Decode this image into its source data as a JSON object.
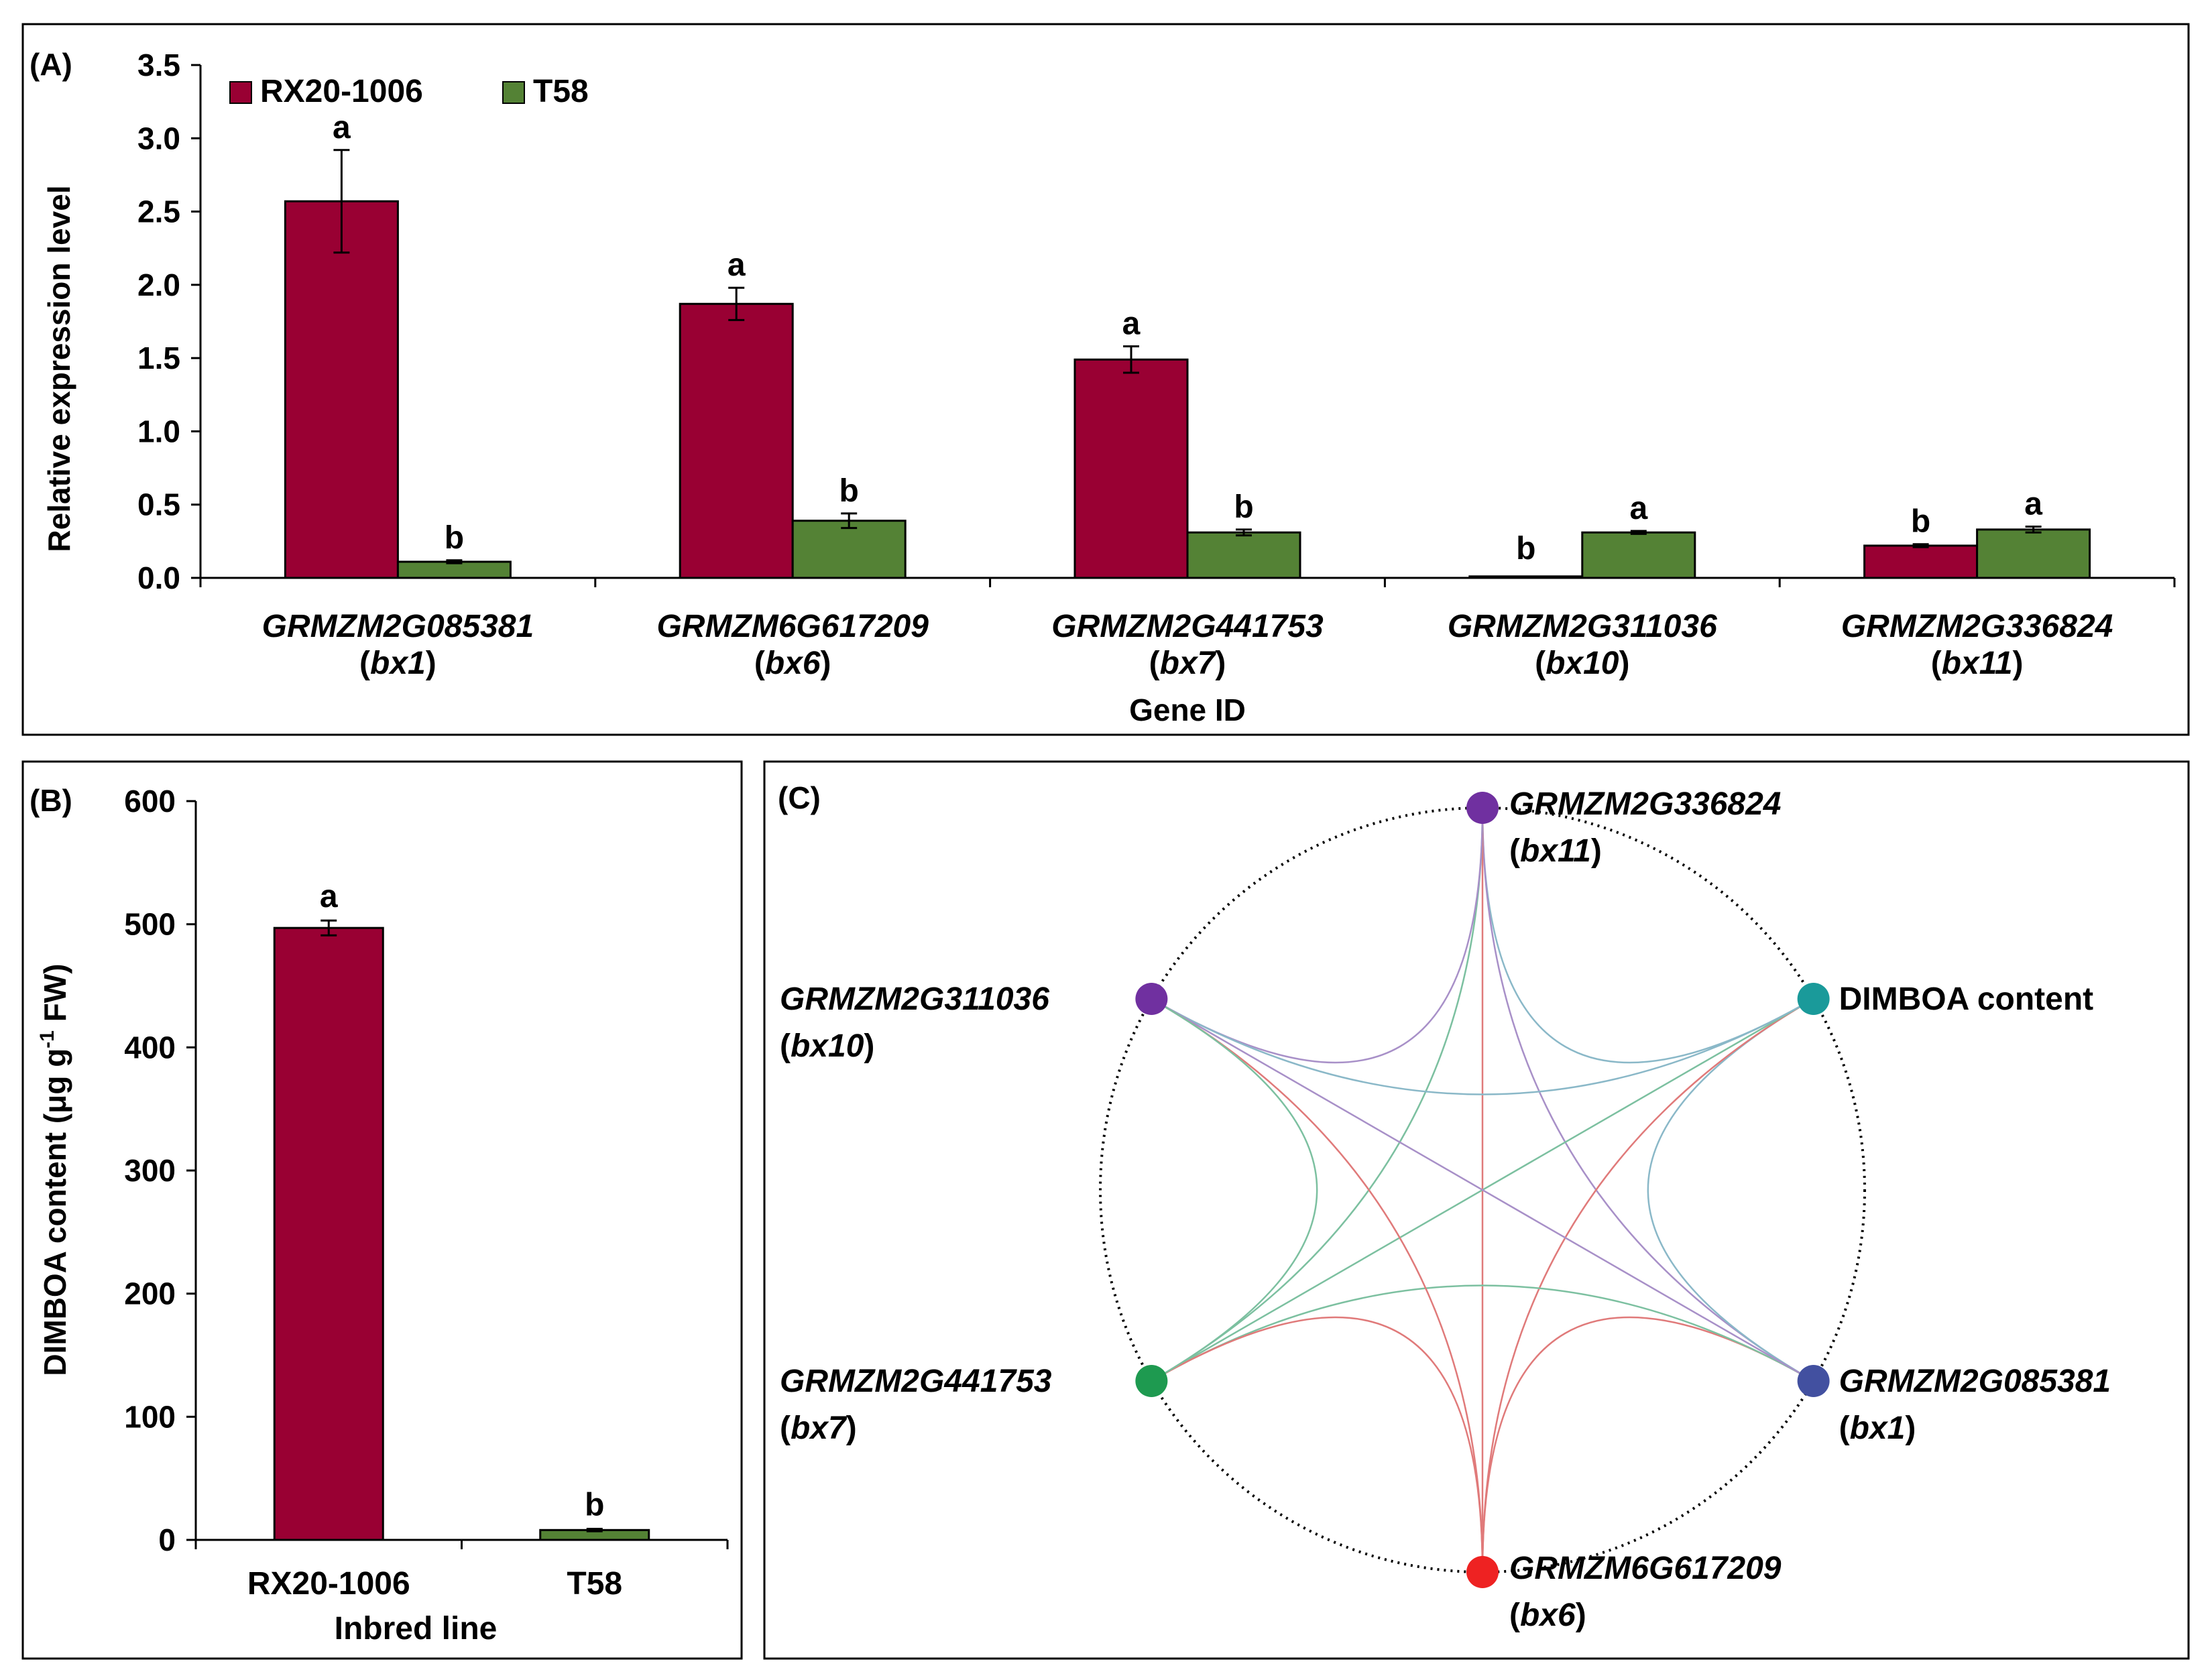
{
  "chart_data": [
    {
      "panel_label": "(A)",
      "type": "bar",
      "xlabel": "Gene ID",
      "ylabel": "Relative expression level",
      "ylim": [
        0,
        3.5
      ],
      "yticks": [
        "0.0",
        "0.5",
        "1.0",
        "1.5",
        "2.0",
        "2.5",
        "3.0",
        "3.5"
      ],
      "legend_placement": "top-left",
      "categories": [
        {
          "gene": "GRMZM2G085381",
          "alias": "bx1"
        },
        {
          "gene": "GRMZM6G617209",
          "alias": "bx6"
        },
        {
          "gene": "GRMZM2G441753",
          "alias": "bx7"
        },
        {
          "gene": "GRMZM2G311036",
          "alias": "bx10"
        },
        {
          "gene": "GRMZM2G336824",
          "alias": "bx11"
        }
      ],
      "series": [
        {
          "name": "RX20-1006",
          "color": "#990033",
          "values": [
            2.57,
            1.87,
            1.49,
            0.01,
            0.22
          ],
          "errors": [
            0.35,
            0.11,
            0.09,
            0.0,
            0.01
          ],
          "letters": [
            "a",
            "a",
            "a",
            "b",
            "b"
          ]
        },
        {
          "name": "T58",
          "color": "#548235",
          "values": [
            0.11,
            0.39,
            0.31,
            0.31,
            0.33
          ],
          "errors": [
            0.01,
            0.05,
            0.02,
            0.01,
            0.02
          ],
          "letters": [
            "b",
            "b",
            "b",
            "a",
            "a"
          ]
        }
      ]
    },
    {
      "panel_label": "(B)",
      "type": "bar",
      "xlabel": "Inbred line",
      "ylabel_main": "DIMBOA content (μg g",
      "ylabel_sup": "-1",
      "ylabel_end": " FW)",
      "ylim": [
        0,
        600
      ],
      "yticks": [
        "0",
        "100",
        "200",
        "300",
        "400",
        "500",
        "600"
      ],
      "categories": [
        "RX20-1006",
        "T58"
      ],
      "values": [
        497,
        8
      ],
      "errors": [
        6,
        1
      ],
      "letters": [
        "a",
        "b"
      ],
      "colors": [
        "#990033",
        "#548235"
      ]
    },
    {
      "panel_label": "(C)",
      "type": "network",
      "nodes": [
        {
          "id": "bx11",
          "gene": "GRMZM2G336824",
          "alias": "bx11",
          "color": "#7030A0"
        },
        {
          "id": "dimboa",
          "gene": "DIMBOA content",
          "alias": "",
          "color": "#1A9A9A"
        },
        {
          "id": "bx1",
          "gene": "GRMZM2G085381",
          "alias": "bx1",
          "color": "#4250A0"
        },
        {
          "id": "bx6",
          "gene": "GRMZM6G617209",
          "alias": "bx6",
          "color": "#EE2222"
        },
        {
          "id": "bx7",
          "gene": "GRMZM2G441753",
          "alias": "bx7",
          "color": "#1E9A50"
        },
        {
          "id": "bx10",
          "gene": "GRMZM2G311036",
          "alias": "bx10",
          "color": "#7030A0"
        }
      ],
      "edges": [
        [
          "bx11",
          "dimboa"
        ],
        [
          "bx11",
          "bx1"
        ],
        [
          "bx11",
          "bx6"
        ],
        [
          "bx11",
          "bx7"
        ],
        [
          "bx11",
          "bx10"
        ],
        [
          "dimboa",
          "bx1"
        ],
        [
          "dimboa",
          "bx6"
        ],
        [
          "dimboa",
          "bx7"
        ],
        [
          "dimboa",
          "bx10"
        ],
        [
          "bx1",
          "bx6"
        ],
        [
          "bx1",
          "bx7"
        ],
        [
          "bx1",
          "bx10"
        ],
        [
          "bx6",
          "bx7"
        ],
        [
          "bx6",
          "bx10"
        ],
        [
          "bx7",
          "bx10"
        ]
      ]
    }
  ]
}
